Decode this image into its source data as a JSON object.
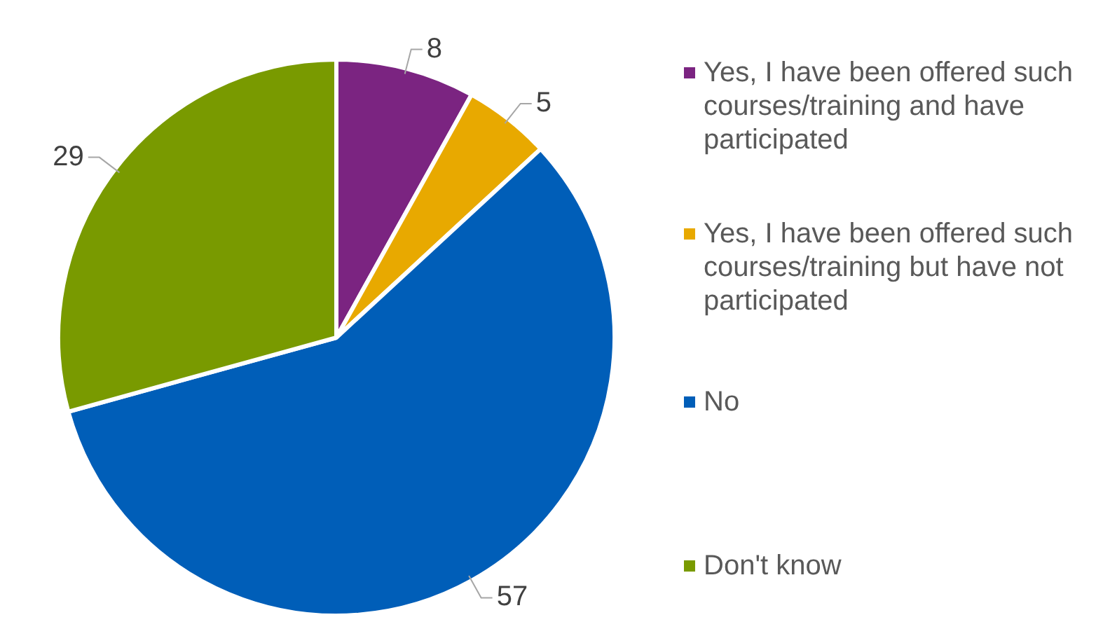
{
  "chart_data": {
    "type": "pie",
    "categories": [
      "Yes, I have been offered such courses/training and have participated",
      "Yes, I have been offered such courses/training but have not participated",
      "No",
      "Don't know"
    ],
    "values": [
      8,
      5,
      57,
      29
    ],
    "colors": [
      "#7b2481",
      "#e8a900",
      "#005eb8",
      "#799a00"
    ],
    "data_labels": true,
    "legend": "right"
  }
}
